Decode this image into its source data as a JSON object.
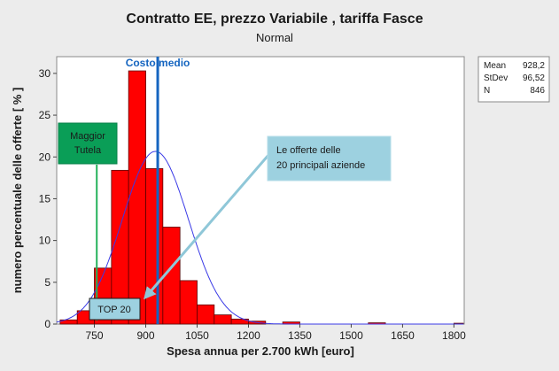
{
  "chart_data": {
    "type": "bar",
    "title": "Contratto EE, prezzo Variabile , tariffa Fasce",
    "subtitle": "Normal",
    "xlabel": "Spesa annua per 2.700 kWh [euro]",
    "ylabel": "numero percentuale delle offerte [ % ]",
    "xlim": [
      640,
      1830
    ],
    "ylim": [
      0,
      32
    ],
    "xticks": [
      750,
      900,
      1050,
      1200,
      1350,
      1500,
      1650,
      1800
    ],
    "yticks": [
      0,
      5,
      10,
      15,
      20,
      25,
      30
    ],
    "bin_width": 50,
    "bins": [
      {
        "x": 675,
        "value": 0.5
      },
      {
        "x": 725,
        "value": 1.6
      },
      {
        "x": 775,
        "value": 6.7
      },
      {
        "x": 825,
        "value": 18.4
      },
      {
        "x": 875,
        "value": 30.3
      },
      {
        "x": 925,
        "value": 18.6
      },
      {
        "x": 975,
        "value": 11.6
      },
      {
        "x": 1025,
        "value": 5.2
      },
      {
        "x": 1075,
        "value": 2.3
      },
      {
        "x": 1125,
        "value": 1.1
      },
      {
        "x": 1175,
        "value": 0.6
      },
      {
        "x": 1225,
        "value": 0.35
      },
      {
        "x": 1325,
        "value": 0.25
      },
      {
        "x": 1575,
        "value": 0.15
      },
      {
        "x": 1825,
        "value": 0.1
      }
    ],
    "normal_fit": {
      "mean": 928.2,
      "stdev": 96.52
    },
    "stats": [
      {
        "label": "Mean",
        "value": "928,2"
      },
      {
        "label": "StDev",
        "value": "96,52"
      },
      {
        "label": "N",
        "value": "846"
      }
    ],
    "mean_line": {
      "x": 935,
      "label": "Costo medio"
    },
    "annotations": {
      "maggior_tutela": {
        "lines": [
          "Maggior",
          "Tutela"
        ],
        "x": 757
      },
      "top20": {
        "label": "TOP 20"
      },
      "offerte": {
        "lines": [
          "Le offerte delle",
          "20 principali aziende"
        ]
      }
    },
    "colors": {
      "bar": "#ff0000",
      "bar_edge": "#5a0000",
      "fit": "#3a3ae6",
      "mean_line": "#1565c0",
      "tutela_box": "#0a9e57",
      "tutela_arrow": "#25b25a",
      "callout_box": "#9dd1e0",
      "callout_arrow": "#8fc7d8",
      "background": "#ececec",
      "plot_bg": "#ffffff"
    }
  }
}
